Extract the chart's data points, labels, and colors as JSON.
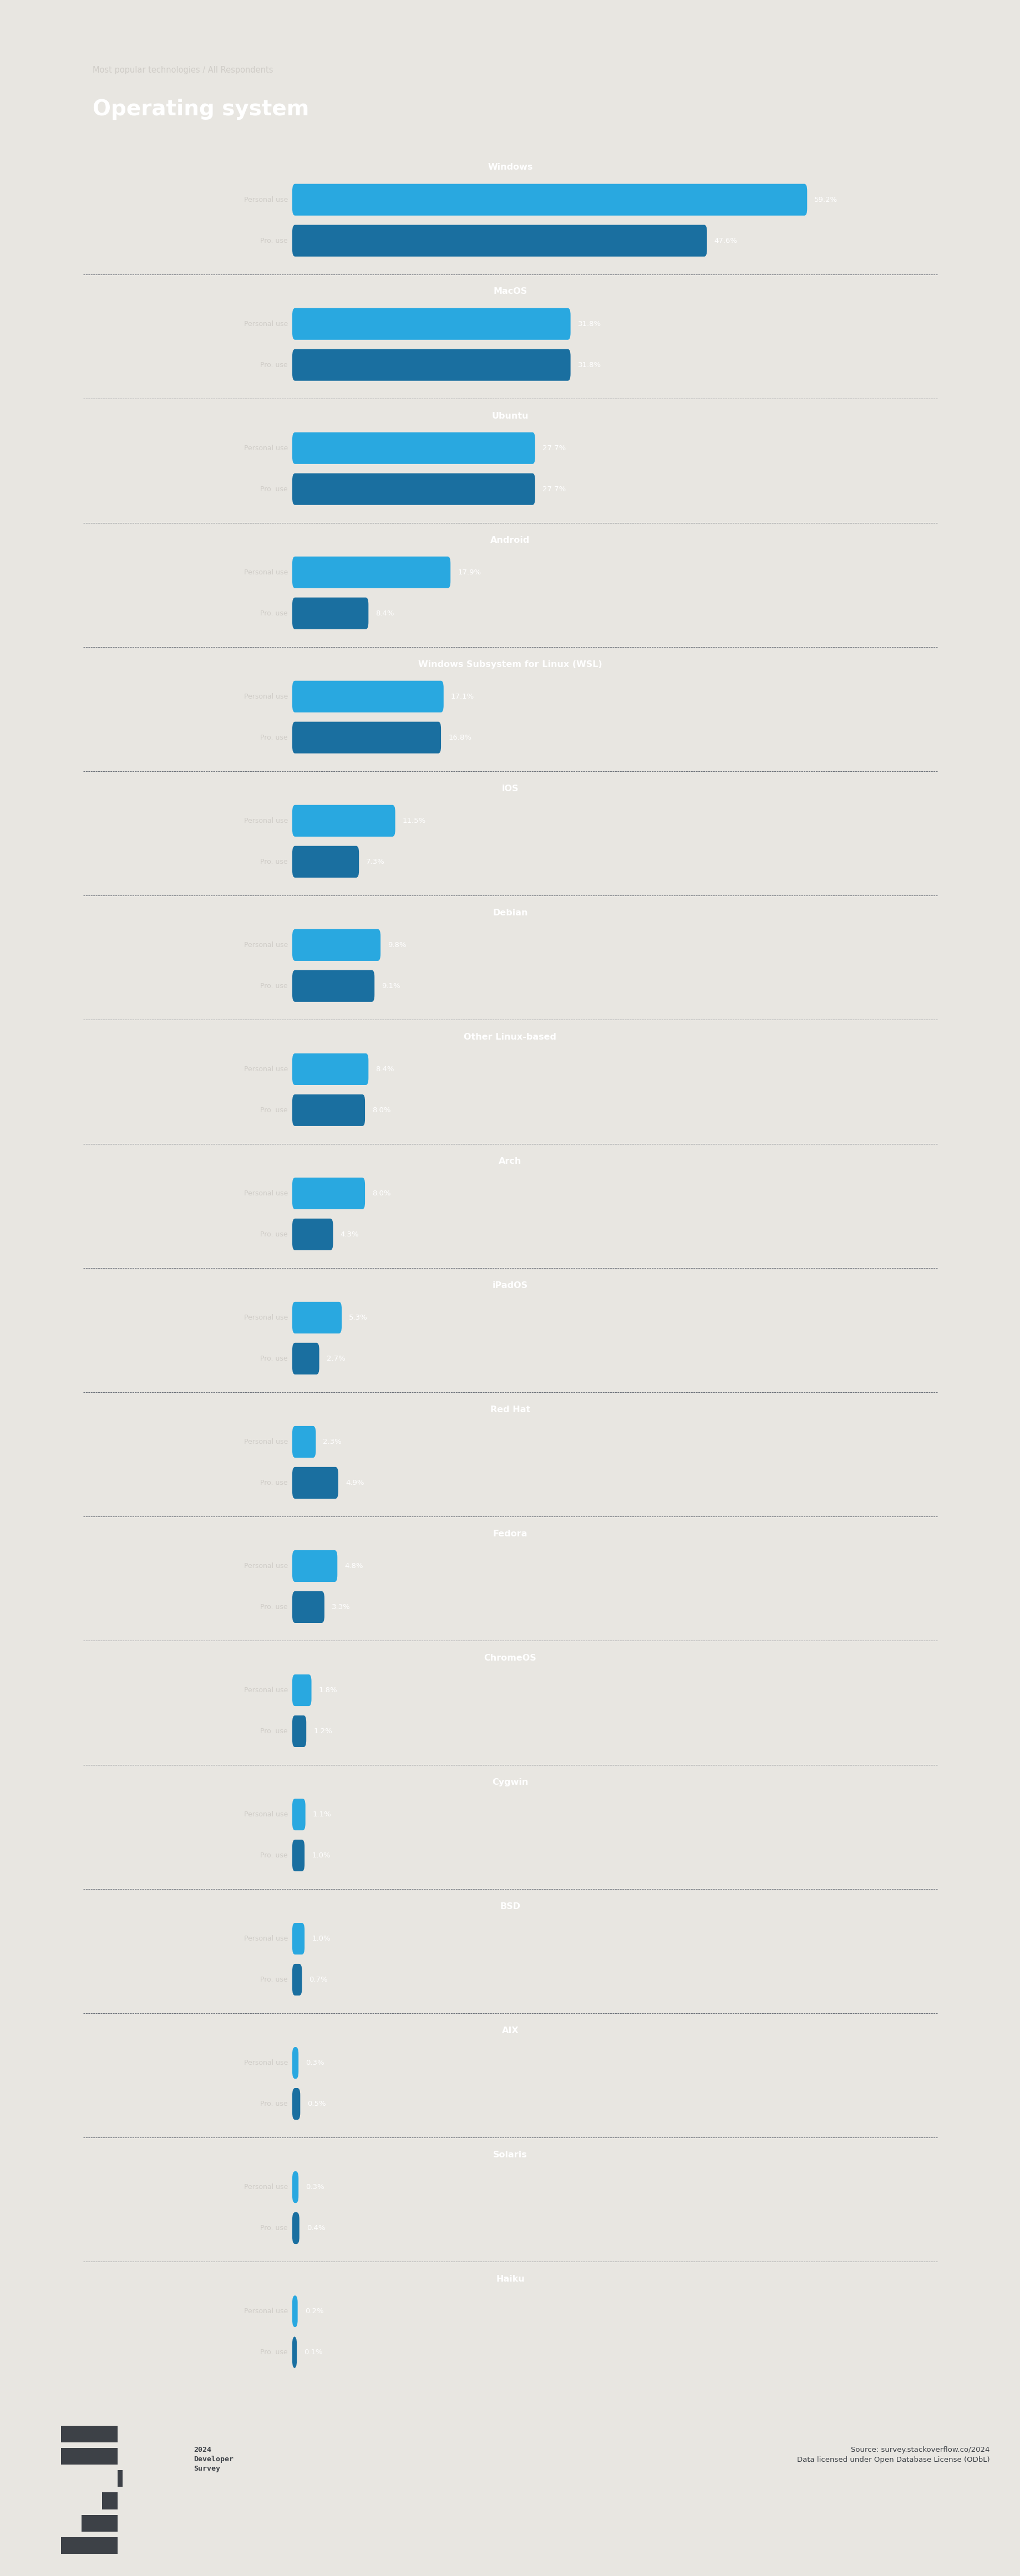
{
  "title": "Operating system",
  "subtitle": "Most popular technologies / All Respondents",
  "bg_color": "#3d4147",
  "outer_bg": "#e8e6e1",
  "text_color": "#d0cdc8",
  "bar_color_personal": "#29a8e0",
  "bar_color_pro": "#1a6fa0",
  "categories": [
    "Windows",
    "MacOS",
    "Ubuntu",
    "Android",
    "Windows Subsystem for Linux (WSL)",
    "iOS",
    "Debian",
    "Other Linux-based",
    "Arch",
    "iPadOS",
    "Red Hat",
    "Fedora",
    "ChromeOS",
    "Cygwin",
    "BSD",
    "AIX",
    "Solaris",
    "Haiku"
  ],
  "personal_use": [
    59.2,
    31.8,
    27.7,
    17.9,
    17.1,
    11.5,
    9.8,
    8.4,
    8.0,
    5.3,
    2.3,
    4.8,
    1.8,
    1.1,
    1.0,
    0.3,
    0.3,
    0.2
  ],
  "pro_use": [
    47.6,
    31.8,
    27.7,
    8.4,
    16.8,
    7.3,
    9.1,
    8.0,
    4.3,
    2.7,
    4.9,
    3.3,
    1.2,
    1.0,
    0.7,
    0.5,
    0.4,
    0.1
  ],
  "source_text": "Source: survey.stackoverflow.co/2024\nData licensed under Open Database License (ODbL)",
  "footer_bg": "#e8e6e1"
}
